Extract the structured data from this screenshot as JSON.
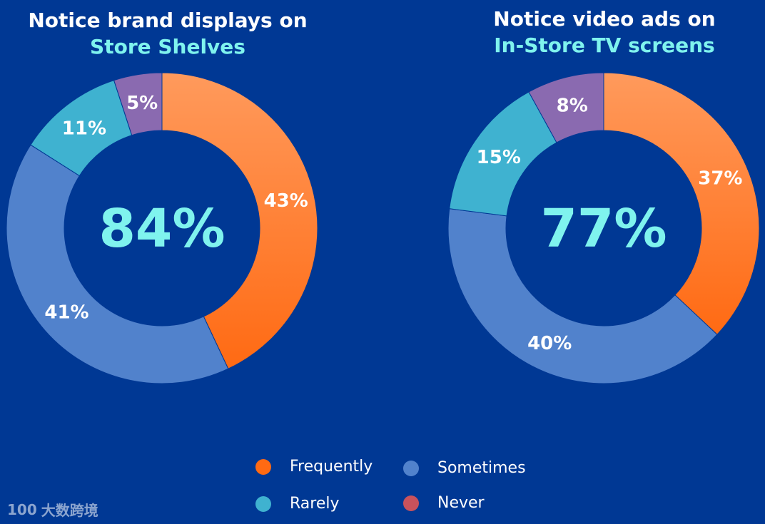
{
  "titles": {
    "left_line1": "Notice brand displays on",
    "left_line2": "Store Shelves",
    "right_line1": "Notice video ads on",
    "right_line2": "In-Store TV screens"
  },
  "legend": [
    {
      "label": "Frequently",
      "color": "#FF6A13"
    },
    {
      "label": "Sometimes",
      "color": "#5182CC"
    },
    {
      "label": "Rarely",
      "color": "#3FB2D0"
    },
    {
      "label": "Never",
      "color": "#C9525C"
    }
  ],
  "watermark": "大数跨境",
  "watermark_logo": "100",
  "chart_data": [
    {
      "type": "pie",
      "title": "Notice brand displays on Store Shelves",
      "center_label": "84%",
      "series": [
        {
          "name": "Frequently",
          "value": 43,
          "label": "43%",
          "color": "#FF6A13"
        },
        {
          "name": "Sometimes",
          "value": 41,
          "label": "41%",
          "color": "#5182CC"
        },
        {
          "name": "Rarely",
          "value": 11,
          "label": "11%",
          "color": "#3FB2D0"
        },
        {
          "name": "Never",
          "value": 5,
          "label": "5%",
          "color": "#8A6AB0"
        }
      ]
    },
    {
      "type": "pie",
      "title": "Notice video ads on In-Store TV screens",
      "center_label": "77%",
      "series": [
        {
          "name": "Frequently",
          "value": 37,
          "label": "37%",
          "color": "#FF6A13"
        },
        {
          "name": "Sometimes",
          "value": 40,
          "label": "40%",
          "color": "#5182CC"
        },
        {
          "name": "Rarely",
          "value": 15,
          "label": "15%",
          "color": "#3FB2D0"
        },
        {
          "name": "Never",
          "value": 8,
          "label": "8%",
          "color": "#8A6AB0"
        }
      ]
    }
  ]
}
